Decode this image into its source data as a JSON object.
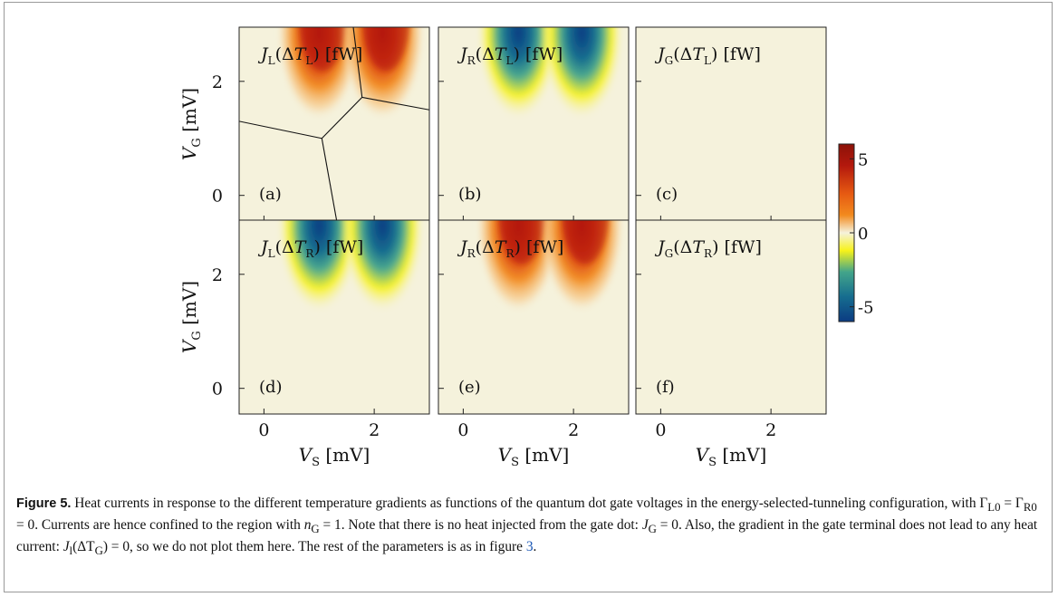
{
  "figure": {
    "panels": [
      {
        "id": "a",
        "tag": "(a)",
        "row": 0,
        "col": 0,
        "title": {
          "sym": "J",
          "sub": "L",
          "arg": "T",
          "argsub": "L",
          "unit": "[fW]"
        },
        "lobes": [
          {
            "x": 1.0,
            "sign": 1
          },
          {
            "x": 2.15,
            "sign": 1
          }
        ],
        "lines": true
      },
      {
        "id": "b",
        "tag": "(b)",
        "row": 0,
        "col": 1,
        "title": {
          "sym": "J",
          "sub": "R",
          "arg": "T",
          "argsub": "L",
          "unit": "[fW]"
        },
        "lobes": [
          {
            "x": 1.0,
            "sign": -1
          },
          {
            "x": 2.15,
            "sign": -1
          }
        ],
        "lines": false
      },
      {
        "id": "c",
        "tag": "(c)",
        "row": 0,
        "col": 2,
        "title": {
          "sym": "J",
          "sub": "G",
          "arg": "T",
          "argsub": "L",
          "unit": "[fW]"
        },
        "lobes": [],
        "lines": false
      },
      {
        "id": "d",
        "tag": "(d)",
        "row": 1,
        "col": 0,
        "title": {
          "sym": "J",
          "sub": "L",
          "arg": "T",
          "argsub": "R",
          "unit": "[fW]"
        },
        "lobes": [
          {
            "x": 1.0,
            "sign": -1
          },
          {
            "x": 2.15,
            "sign": -1
          }
        ],
        "lines": false
      },
      {
        "id": "e",
        "tag": "(e)",
        "row": 1,
        "col": 1,
        "title": {
          "sym": "J",
          "sub": "R",
          "arg": "T",
          "argsub": "R",
          "unit": "[fW]"
        },
        "lobes": [
          {
            "x": 1.0,
            "sign": 1
          },
          {
            "x": 2.15,
            "sign": 1
          }
        ],
        "lines": false
      },
      {
        "id": "f",
        "tag": "(f)",
        "row": 1,
        "col": 2,
        "title": {
          "sym": "J",
          "sub": "G",
          "arg": "T",
          "argsub": "R",
          "unit": "[fW]"
        },
        "lobes": [],
        "lines": false
      }
    ],
    "x_ticks": [
      {
        "v": 0,
        "label": "0"
      },
      {
        "v": 2,
        "label": "2"
      }
    ],
    "y_ticks": [
      {
        "v": 0,
        "label": "0"
      },
      {
        "v": 2,
        "label": "2"
      }
    ],
    "x_range": [
      -0.45,
      3.0
    ],
    "y_range": [
      -0.45,
      2.95
    ],
    "xlabel": {
      "sym": "V",
      "sub": "S",
      "unit": "[mV]"
    },
    "ylabel": {
      "sym": "V",
      "sub": "G",
      "unit": "[mV]"
    },
    "colorbar": {
      "range": [
        -6,
        6
      ],
      "ticks": [
        {
          "v": 5,
          "label": "5"
        },
        {
          "v": 0,
          "label": "0"
        },
        {
          "v": -5,
          "label": "-5"
        }
      ]
    },
    "colors": {
      "neutral": "#f5f2dc",
      "positive_mid": "#f28a1e",
      "positive_peak": "#b3180d",
      "negative_mid": "#f7f21a",
      "negative_peak": "#0b3b82"
    }
  },
  "caption": {
    "label": "Figure 5.",
    "text_1": " Heat currents in response to the different temperature gradients as functions of the quantum dot gate voltages in the energy-selected-tunneling configuration, with Γ",
    "sub_1": "L0",
    "text_2": " = Γ",
    "sub_2": "R0",
    "text_3": " = 0. Currents are hence confined to the region with ",
    "n_sym": "n",
    "n_sub": "G",
    "text_4": " = 1. Note that there is no heat injected from the gate dot: ",
    "j_sym": "J",
    "j_sub": "G",
    "text_5": " = 0. Also, the gradient in the gate terminal does not lead to any heat current: ",
    "jl_sym": "J",
    "jl_sub": "l",
    "text_6": "(ΔT",
    "t_sub": "G",
    "text_7": ") = 0, so we do not plot them here. The rest of the parameters is as in figure ",
    "ref": "3",
    "text_8": "."
  }
}
